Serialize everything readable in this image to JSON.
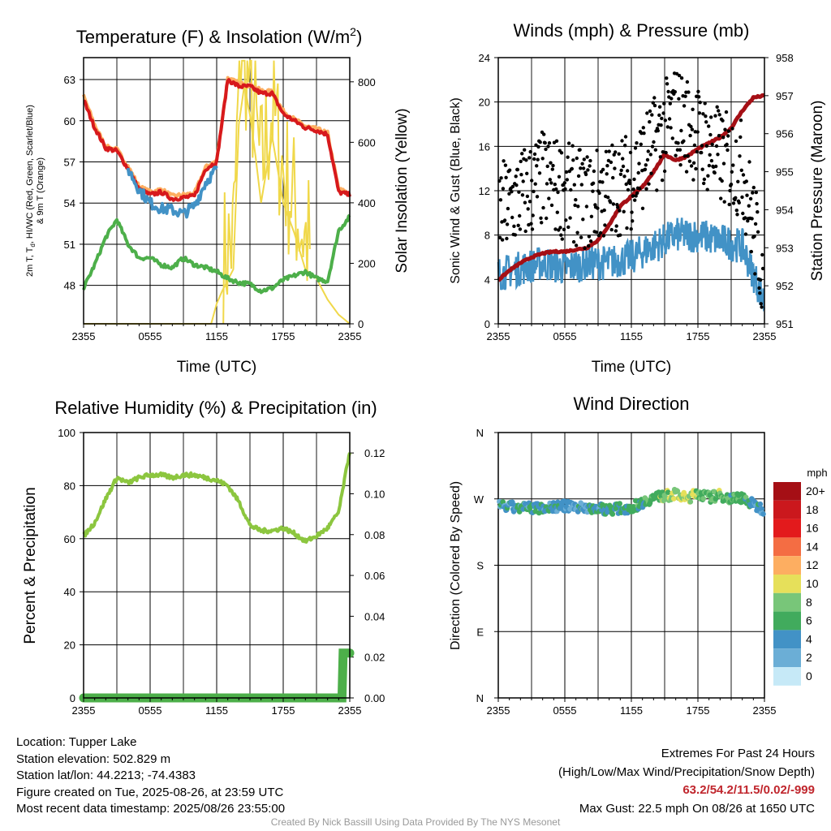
{
  "panels": {
    "temp": {
      "title_main": "Temperature (F) & Insolation (W/m",
      "title_sup": "2",
      "title_end": ")",
      "ylabel_line1_a": "2m T, T",
      "ylabel_line1_sub": "d",
      "ylabel_line1_b": ", HI/WC (Red, Green, Scarlet/Blue)",
      "ylabel_line2": "& 9m T (Orange)",
      "ylabel_right": "Solar Insolation (Yellow)",
      "xlabel": "Time (UTC)",
      "left_ticks": [
        "63",
        "60",
        "57",
        "54",
        "51",
        "48"
      ],
      "right_ticks": [
        "800",
        "600",
        "400",
        "200",
        "0"
      ]
    },
    "wind": {
      "title": "Winds (mph) & Pressure (mb)",
      "ylabel_left": "Sonic Wind & Gust (Blue, Black)",
      "ylabel_right": "Station Pressure (Maroon)",
      "xlabel": "Time (UTC)",
      "left_ticks": [
        "24",
        "20",
        "16",
        "12",
        "8",
        "4",
        "0"
      ],
      "right_ticks": [
        "958",
        "957",
        "956",
        "955",
        "954",
        "953",
        "952",
        "951"
      ]
    },
    "rh": {
      "title": "Relative Humidity (%) & Precipitation (in)",
      "ylabel_left": "Percent & Precipitation",
      "left_ticks": [
        "100",
        "80",
        "60",
        "40",
        "20",
        "0"
      ],
      "right_ticks": [
        "0.12",
        "0.10",
        "0.08",
        "0.06",
        "0.04",
        "0.02",
        "0.00"
      ]
    },
    "dir": {
      "title": "Wind Direction",
      "ylabel_left": "Direction (Colored By Speed)",
      "left_ticks": [
        "N",
        "W",
        "S",
        "E",
        "N"
      ],
      "legend_title": "mph",
      "legend_labels": [
        "20+",
        "18",
        "16",
        "14",
        "12",
        "10",
        "8",
        "6",
        "4",
        "2",
        "0"
      ],
      "legend_colors": [
        "#a50f15",
        "#cb181d",
        "#e31a1c",
        "#f46d43",
        "#fdae61",
        "#e6e05a",
        "#78c679",
        "#41ab5d",
        "#4292c6",
        "#6baed6",
        "#c6e9f7"
      ]
    },
    "x_ticks": [
      "2355",
      "0555",
      "1155",
      "1755",
      "2355"
    ]
  },
  "info": {
    "location": "Location: Tupper Lake",
    "elevation": "Station elevation: 502.829 m",
    "latlon": "Station lat/lon: 44.2213; -74.4383",
    "created": "Figure created on Tue, 2025-08-26, at 23:59 UTC",
    "recent": "Most recent data timestamp: 2025/08/26 23:55:00"
  },
  "extremes": {
    "line1": "Extremes For Past 24 Hours",
    "line2": "(High/Low/Max Wind/Precipitation/Snow Depth)",
    "values": "63.2/54.2/11.5/0.02/-999",
    "gust": "Max Gust: 22.5 mph On 08/26 at 1650 UTC"
  },
  "credit": "Created By Nick Bassill Using Data Provided By The NYS Mesonet",
  "chart_data": [
    {
      "type": "line",
      "title": "Temperature (F) & Insolation (W/m2)",
      "xlabel": "Time (UTC)",
      "ylabel": "2m T, Td, HI/WC (Red, Green, Scarlet/Blue) & 9m T (Orange)",
      "ylabel_right": "Solar Insolation (Yellow)",
      "ylim": [
        45.2,
        64.6
      ],
      "ylim_right": [
        0,
        880
      ],
      "x_hours": [
        0,
        24
      ],
      "series": [
        {
          "name": "2m T (Red)",
          "color": "#d7191c",
          "x": [
            0,
            1,
            2,
            3,
            4,
            5,
            6,
            7,
            8,
            9,
            10,
            11,
            12,
            13,
            14,
            15,
            16,
            17,
            18,
            19,
            20,
            21,
            22,
            23,
            24
          ],
          "values": [
            61.5,
            59.5,
            58,
            57.8,
            56.5,
            55,
            54.6,
            54.8,
            54.3,
            54.4,
            54.5,
            56.5,
            57,
            63,
            62.5,
            62.5,
            62,
            62,
            60.5,
            60,
            59.5,
            59.3,
            59,
            54.8,
            54.6
          ]
        },
        {
          "name": "9m T (Orange)",
          "color": "#fdae61",
          "x": [
            0,
            1,
            2,
            3,
            4,
            5,
            6,
            7,
            8,
            9,
            10,
            11,
            12,
            13,
            14,
            15,
            16,
            17,
            18,
            19,
            20,
            21,
            22,
            23,
            24
          ],
          "values": [
            61.8,
            59.7,
            58.1,
            57.9,
            56.7,
            55.2,
            54.8,
            55,
            54.5,
            54.6,
            54.7,
            56.6,
            57.1,
            63.1,
            62.7,
            62.6,
            62.2,
            62.1,
            60.7,
            60.1,
            59.6,
            59.4,
            59.1,
            55,
            54.7
          ]
        },
        {
          "name": "Td (Green)",
          "color": "#4daf4a",
          "x": [
            0,
            1,
            2,
            3,
            4,
            5,
            6,
            7,
            8,
            9,
            10,
            11,
            12,
            13,
            14,
            15,
            16,
            17,
            18,
            19,
            20,
            21,
            22,
            23,
            24
          ],
          "values": [
            47.8,
            49.5,
            51.5,
            52.8,
            51,
            50,
            50,
            49.5,
            49.3,
            50,
            49.5,
            49.3,
            49,
            48.5,
            48.2,
            48.1,
            47.6,
            47.8,
            48.4,
            48.7,
            49,
            48.5,
            48.3,
            52,
            53
          ]
        },
        {
          "name": "WC (Blue)",
          "color": "#4292c6",
          "x": [
            4,
            5,
            6,
            7,
            8,
            9,
            10,
            11,
            12
          ],
          "values": [
            56.5,
            55,
            54,
            53.6,
            53.5,
            53.2,
            53.8,
            55.5,
            56.5
          ]
        },
        {
          "name": "Solar Insolation (Yellow)",
          "color": "#f0d84a",
          "axis": "right",
          "x": [
            0,
            7.5,
            9.5,
            11.5,
            12.1,
            13.5,
            14.2,
            15.2,
            16,
            17,
            18,
            19,
            20,
            21,
            22,
            23,
            24
          ],
          "values": [
            0,
            0,
            0,
            0,
            80,
            180,
            850,
            650,
            400,
            620,
            400,
            300,
            180,
            150,
            80,
            30,
            0
          ]
        }
      ]
    },
    {
      "type": "line",
      "title": "Winds (mph) & Pressure (mb)",
      "xlabel": "Time (UTC)",
      "ylabel": "Sonic Wind & Gust (Blue, Black)",
      "ylabel_right": "Station Pressure (Maroon)",
      "ylim": [
        0,
        24
      ],
      "ylim_right": [
        951,
        958
      ],
      "x_hours": [
        0,
        24
      ],
      "series": [
        {
          "name": "Sonic Wind (Blue)",
          "color": "#4292c6",
          "x": [
            0,
            2,
            4,
            6,
            8,
            10,
            12,
            14,
            16,
            18,
            20,
            22,
            24
          ],
          "values": [
            4.5,
            5,
            5.5,
            5,
            5.5,
            5.5,
            6,
            7,
            8,
            8,
            7.5,
            7,
            2
          ]
        },
        {
          "name": "Gust (Black)",
          "color": "#000000",
          "type": "scatter",
          "x": [
            0,
            2,
            4,
            6,
            8,
            10,
            12,
            14,
            16,
            18,
            20,
            22,
            24
          ],
          "values": [
            10,
            11.5,
            13,
            12,
            11,
            12,
            13,
            16,
            19,
            17,
            15,
            14,
            4
          ]
        },
        {
          "name": "Station Pressure (Maroon)",
          "color": "#a50f15",
          "axis": "right",
          "x": [
            0,
            1,
            2,
            3,
            4,
            5,
            6,
            7,
            8,
            9,
            10,
            11,
            12,
            13,
            14,
            15,
            16,
            17,
            18,
            19,
            20,
            21,
            22,
            23,
            24
          ],
          "values": [
            952.15,
            952.4,
            952.6,
            952.75,
            952.85,
            952.9,
            952.9,
            952.95,
            953,
            953.2,
            953.6,
            954.1,
            954.35,
            954.6,
            955,
            955.45,
            955.3,
            955.4,
            955.6,
            955.75,
            955.9,
            956.15,
            956.6,
            956.95,
            957
          ]
        }
      ]
    },
    {
      "type": "line",
      "title": "Relative Humidity (%) & Precipitation (in)",
      "ylabel": "Percent & Precipitation",
      "ylim": [
        0,
        100
      ],
      "ylim_right": [
        0,
        0.13
      ],
      "x_hours": [
        0,
        24
      ],
      "series": [
        {
          "name": "Relative Humidity",
          "color": "#8cc63f",
          "x": [
            0,
            1,
            2,
            3,
            4,
            5,
            6,
            7,
            8,
            9,
            10,
            11,
            12,
            13,
            14,
            15,
            16,
            17,
            18,
            19,
            20,
            21,
            22,
            23,
            24
          ],
          "values": [
            61,
            66,
            75,
            83,
            81,
            83,
            84,
            84,
            83,
            84,
            84,
            83,
            82,
            80,
            74,
            65,
            63,
            63,
            64,
            62,
            59,
            61,
            64,
            70,
            93
          ]
        },
        {
          "name": "Precipitation",
          "color": "#4daf4a",
          "axis": "right",
          "x": [
            0,
            23.3,
            23.4,
            24
          ],
          "values": [
            0,
            0,
            0.022,
            0.022
          ]
        }
      ]
    },
    {
      "type": "scatter",
      "title": "Wind Direction",
      "ylabel": "Direction (Colored By Speed)",
      "y_ticks": [
        "N",
        "W",
        "S",
        "E",
        "N"
      ],
      "ylim": [
        360,
        0
      ],
      "x_hours": [
        0,
        24
      ],
      "series": [
        {
          "name": "Direction",
          "x": [
            0,
            2,
            4,
            6,
            8,
            10,
            12,
            14,
            15,
            16,
            17,
            18,
            19,
            20,
            21,
            22,
            23,
            24
          ],
          "values": [
            260,
            258,
            258,
            260,
            258,
            256,
            258,
            272,
            274,
            276,
            270,
            278,
            272,
            275,
            270,
            272,
            262,
            255
          ],
          "speeds": [
            4,
            4,
            5,
            4,
            4,
            5,
            5,
            6,
            8,
            9,
            10,
            8,
            7,
            8,
            6,
            6,
            4,
            3
          ]
        }
      ]
    }
  ]
}
